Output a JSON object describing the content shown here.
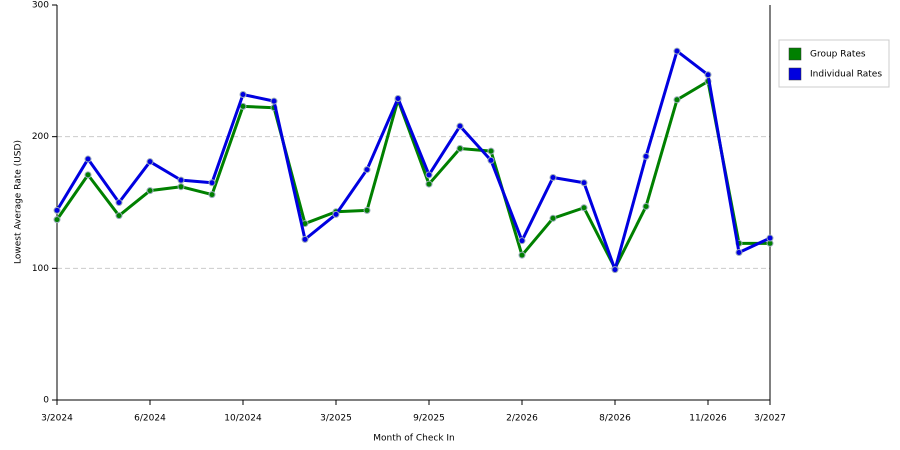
{
  "chart_data": {
    "type": "line",
    "x_label": "Month of Check In",
    "y_label": "Lowest Average Rate (USD)",
    "categories": [
      "3/2024",
      null,
      null,
      "6/2024",
      null,
      null,
      "10/2024",
      null,
      null,
      "3/2025",
      null,
      null,
      "9/2025",
      null,
      null,
      "2/2026",
      null,
      null,
      "8/2026",
      null,
      null,
      "11/2026",
      null,
      "3/2027"
    ],
    "series": [
      {
        "name": "Group Rates",
        "color": "#008000",
        "values": [
          137,
          171,
          140,
          159,
          162,
          156,
          223,
          222,
          134,
          143,
          144,
          228,
          164,
          191,
          189,
          110,
          138,
          146,
          100,
          147,
          228,
          242,
          119,
          119
        ]
      },
      {
        "name": "Individual Rates",
        "color": "#0000e0",
        "values": [
          144,
          183,
          150,
          181,
          167,
          165,
          232,
          227,
          122,
          141,
          175,
          229,
          171,
          208,
          182,
          121,
          169,
          165,
          99,
          185,
          265,
          247,
          112,
          123
        ]
      }
    ],
    "ylim": [
      0,
      300
    ],
    "yticks": [
      0,
      100,
      200,
      300
    ],
    "grid": true,
    "legend": "right"
  }
}
